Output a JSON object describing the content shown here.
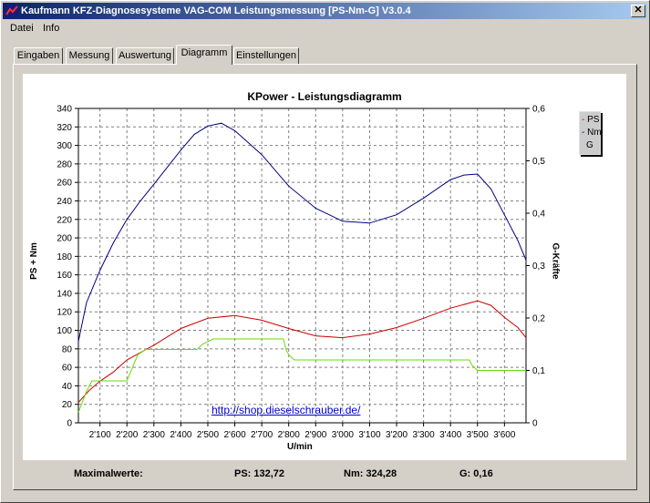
{
  "window": {
    "title": "Kaufmann KFZ-Diagnosesysteme  VAG-COM  Leistungsmessung [PS-Nm-G] V3.0.4",
    "close_glyph": "✕"
  },
  "menu": {
    "items": [
      "Datei",
      "Info"
    ]
  },
  "tabs": {
    "items": [
      "Eingaben",
      "Messung",
      "Auswertung",
      "Diagramm",
      "Einstellungen"
    ],
    "active": "Diagramm"
  },
  "chart_data": {
    "type": "line",
    "title": "KPower - Leistungsdiagramm",
    "xlabel": "U/min",
    "ylabel_left": "PS + Nm",
    "ylabel_right": "G-Kräfte",
    "xlim": [
      2020,
      3680
    ],
    "ylim_left": [
      0,
      340
    ],
    "ylim_right": [
      0,
      0.6
    ],
    "x_tick_labels": [
      "2'100",
      "2'200",
      "2'300",
      "2'400",
      "2'500",
      "2'600",
      "2'700",
      "2'800",
      "2'900",
      "3'000",
      "3'100",
      "3'200",
      "3'300",
      "3'400",
      "3'500",
      "3'600"
    ],
    "x_ticks": [
      2100,
      2200,
      2300,
      2400,
      2500,
      2600,
      2700,
      2800,
      2900,
      3000,
      3100,
      3200,
      3300,
      3400,
      3500,
      3600
    ],
    "y_left_ticks": [
      0,
      20,
      40,
      60,
      80,
      100,
      120,
      140,
      160,
      180,
      200,
      220,
      240,
      260,
      280,
      300,
      320,
      340
    ],
    "y_right_tick_labels": [
      "0",
      "0,1",
      "0,2",
      "0,3",
      "0,4",
      "0,5",
      "0,6"
    ],
    "y_right_ticks": [
      0,
      0.1,
      0.2,
      0.3,
      0.4,
      0.5,
      0.6
    ],
    "grid": true,
    "legend_position": "top-right",
    "series": [
      {
        "name": "PS",
        "axis": "left",
        "color": "#cc0000",
        "x": [
          2020,
          2060,
          2100,
          2150,
          2200,
          2250,
          2300,
          2400,
          2500,
          2600,
          2700,
          2800,
          2900,
          3000,
          3100,
          3200,
          3300,
          3400,
          3500,
          3550,
          3600,
          3650,
          3680
        ],
        "values": [
          22,
          35,
          45,
          55,
          68,
          76,
          84,
          102,
          113,
          116,
          111,
          102,
          94,
          92,
          96,
          103,
          113,
          124,
          132,
          127,
          114,
          103,
          92
        ]
      },
      {
        "name": "Nm",
        "axis": "left",
        "color": "#000080",
        "x": [
          2020,
          2050,
          2100,
          2150,
          2200,
          2250,
          2300,
          2400,
          2450,
          2500,
          2550,
          2600,
          2700,
          2800,
          2900,
          3000,
          3100,
          3200,
          3300,
          3400,
          3450,
          3500,
          3550,
          3600,
          3650,
          3680
        ],
        "values": [
          88,
          130,
          165,
          195,
          220,
          240,
          258,
          295,
          312,
          321,
          324,
          316,
          290,
          256,
          232,
          218,
          216,
          225,
          243,
          263,
          268,
          269,
          253,
          225,
          197,
          176
        ]
      },
      {
        "name": "G",
        "axis": "right",
        "color": "#66dd00",
        "x": [
          2020,
          2050,
          2070,
          2090,
          2180,
          2200,
          2240,
          2270,
          2300,
          2460,
          2480,
          2520,
          2780,
          2790,
          2800,
          2820,
          3000,
          3400,
          3470,
          3480,
          3500,
          3520,
          3680
        ],
        "values": [
          0.02,
          0.06,
          0.08,
          0.08,
          0.08,
          0.08,
          0.13,
          0.14,
          0.14,
          0.14,
          0.15,
          0.16,
          0.16,
          0.14,
          0.13,
          0.12,
          0.12,
          0.12,
          0.12,
          0.11,
          0.1,
          0.1,
          0.1
        ]
      }
    ]
  },
  "link_text": "http://shop.dieselschrauber.de/",
  "status": {
    "label": "Maximalwerte:",
    "ps": "PS: 132,72",
    "nm": "Nm: 324,28",
    "g": "G: 0,16"
  }
}
